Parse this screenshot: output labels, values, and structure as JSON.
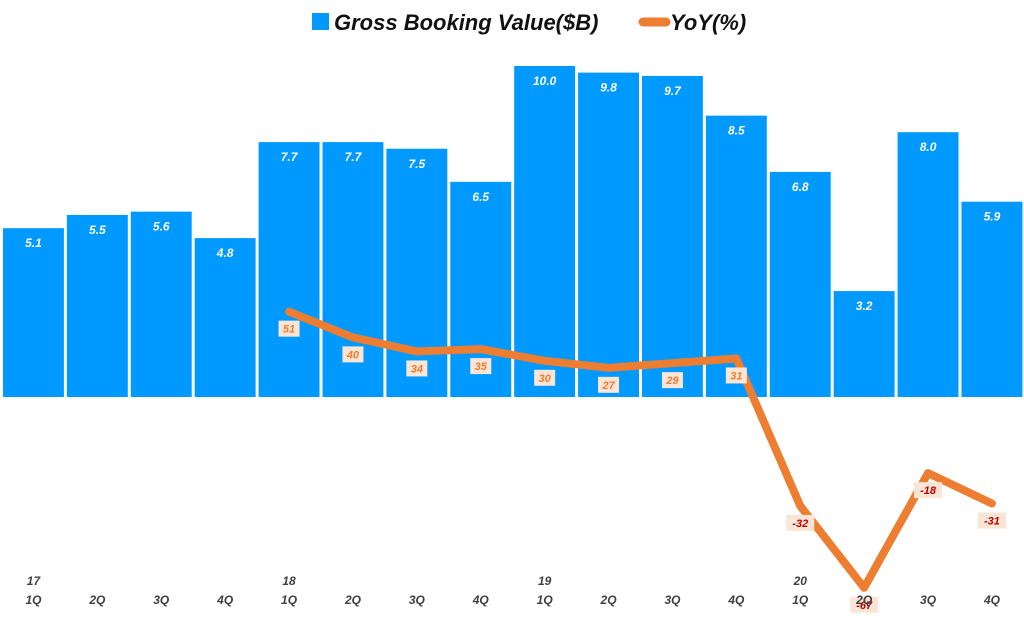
{
  "chart_data": {
    "type": "bar",
    "categories": [
      "1Q",
      "2Q",
      "3Q",
      "4Q",
      "1Q",
      "2Q",
      "3Q",
      "4Q",
      "1Q",
      "2Q",
      "3Q",
      "4Q",
      "1Q",
      "2Q",
      "3Q",
      "4Q"
    ],
    "year_labels": [
      "17",
      "",
      "",
      "",
      "18",
      "",
      "",
      "",
      "19",
      "",
      "",
      "",
      "20",
      "",
      "",
      ""
    ],
    "series": [
      {
        "name": "Gross Booking Value($B)",
        "type": "bar",
        "values": [
          5.1,
          5.5,
          5.6,
          4.8,
          7.7,
          7.7,
          7.5,
          6.5,
          10.0,
          9.8,
          9.7,
          8.5,
          6.8,
          3.2,
          8.0,
          5.9
        ],
        "labels": [
          "5.1",
          "5.5",
          "5.6",
          "4.8",
          "7.7",
          "7.7",
          "7.5",
          "6.5",
          "10.0",
          "9.8",
          "9.7",
          "8.5",
          "6.8",
          "3.2",
          "8.0",
          "5.9"
        ]
      },
      {
        "name": "YoY(%)",
        "type": "line",
        "values": [
          null,
          null,
          null,
          null,
          51,
          40,
          34,
          35,
          30,
          27,
          29,
          31,
          -32,
          -67,
          -18,
          -31
        ],
        "labels": [
          "",
          "",
          "",
          "",
          "51",
          "40",
          "34",
          "35",
          "30",
          "27",
          "29",
          "31",
          "-32",
          "-67",
          "-18",
          "-31"
        ]
      }
    ],
    "colors": {
      "bar": "#0099ff",
      "line": "#ed7d31",
      "label_box": "#fbe5d6",
      "pos_label": "#ed7d31",
      "neg_label": "#c00000"
    },
    "legend": "top-center",
    "grid": false
  }
}
